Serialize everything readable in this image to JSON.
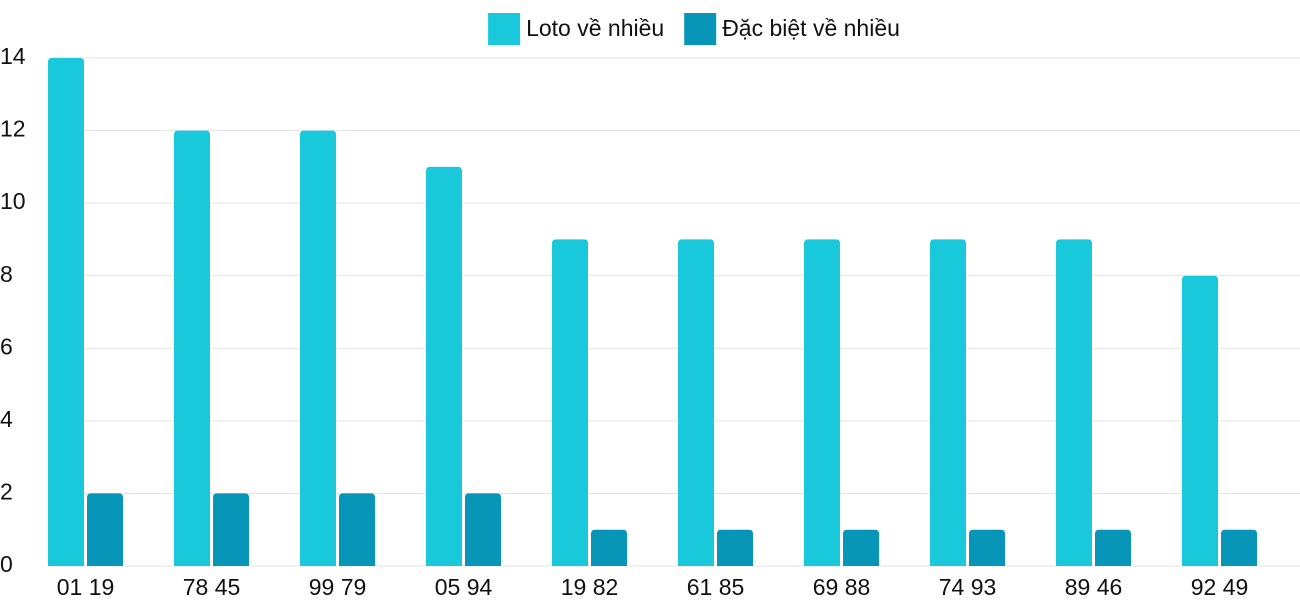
{
  "chart_data": {
    "type": "bar",
    "categories": [
      "01 19",
      "78 45",
      "99 79",
      "05 94",
      "19 82",
      "61 85",
      "69 88",
      "74 93",
      "89 46",
      "92 49"
    ],
    "series": [
      {
        "name": "Loto về nhiều",
        "color": "#1ac8db",
        "values": [
          14,
          12,
          12,
          11,
          9,
          9,
          9,
          9,
          9,
          8
        ]
      },
      {
        "name": "Đặc biệt về nhiều",
        "color": "#0795b8",
        "values": [
          2,
          2,
          2,
          2,
          1,
          1,
          1,
          1,
          1,
          1
        ]
      }
    ],
    "ylim": [
      0,
      14
    ],
    "yticks": [
      0,
      2,
      4,
      6,
      8,
      10,
      12,
      14
    ],
    "grid": true,
    "legend": "top"
  }
}
